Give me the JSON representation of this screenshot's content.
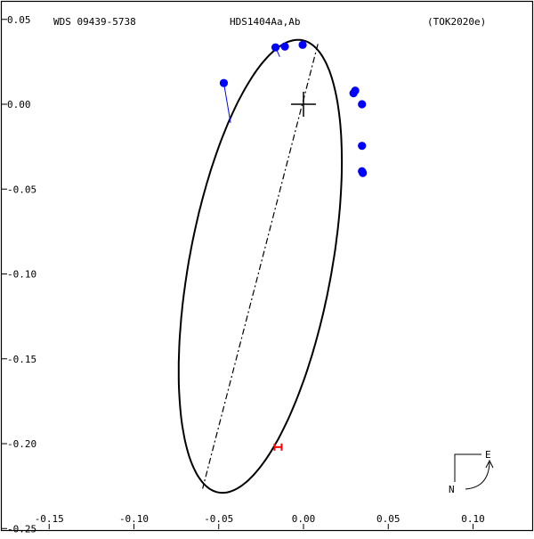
{
  "header": {
    "left": "WDS 09439-5738",
    "center": "HDS1404Aa,Ab",
    "right": "(TOK2020e)"
  },
  "compass": {
    "east": "E",
    "north": "N"
  },
  "chart_data": {
    "type": "scatter",
    "title": "HDS1404Aa,Ab",
    "xlim": [
      -0.15,
      0.13
    ],
    "ylim": [
      -0.25,
      0.05
    ],
    "x_ticks": [
      {
        "v": -0.15,
        "label": "-0.15"
      },
      {
        "v": -0.1,
        "label": "-0.10"
      },
      {
        "v": -0.05,
        "label": "-0.05"
      },
      {
        "v": 0.0,
        "label": "0.00"
      },
      {
        "v": 0.05,
        "label": "0.05"
      },
      {
        "v": 0.1,
        "label": "0.10"
      }
    ],
    "y_ticks": [
      {
        "v": 0.05,
        "label": "0.05"
      },
      {
        "v": 0.0,
        "label": "0.00"
      },
      {
        "v": -0.05,
        "label": "-0.05"
      },
      {
        "v": -0.1,
        "label": "-0.10"
      },
      {
        "v": -0.15,
        "label": "-0.15"
      },
      {
        "v": -0.2,
        "label": "-0.20"
      },
      {
        "v": -0.25,
        "label": "-0.25"
      }
    ],
    "primary": [
      0.0,
      0.0
    ],
    "orbit": {
      "center": [
        -0.0255,
        -0.0955
      ],
      "a": 0.1355,
      "b": 0.042,
      "angle_deg": 79.5,
      "color": "#000000"
    },
    "line_of_nodes": [
      [
        0.0085,
        0.0355
      ],
      [
        -0.0595,
        -0.2265
      ]
    ],
    "observations": {
      "color": "#0000ff",
      "points": [
        {
          "x": -0.047,
          "y": 0.0125,
          "ox": -0.043,
          "oy": -0.011
        },
        {
          "x": -0.0165,
          "y": 0.0335,
          "ox": -0.014,
          "oy": 0.028
        },
        {
          "x": -0.011,
          "y": 0.034,
          "ox": -0.011,
          "oy": 0.033
        },
        {
          "x": -0.0005,
          "y": 0.035,
          "ox": -0.0005,
          "oy": 0.035
        },
        {
          "x": 0.0295,
          "y": 0.0065,
          "ox": 0.0295,
          "oy": 0.0065
        },
        {
          "x": 0.0305,
          "y": 0.008,
          "ox": 0.0305,
          "oy": 0.008
        },
        {
          "x": 0.0345,
          "y": 0.0,
          "ox": 0.0345,
          "oy": 0.0
        },
        {
          "x": 0.0345,
          "y": -0.0245,
          "ox": 0.0345,
          "oy": -0.0245
        },
        {
          "x": 0.0345,
          "y": -0.0395,
          "ox": 0.0345,
          "oy": -0.0395
        },
        {
          "x": 0.035,
          "y": -0.0405,
          "ox": 0.035,
          "oy": -0.0405
        }
      ]
    },
    "periastron_marker": {
      "x": -0.015,
      "y": -0.202,
      "color": "#ff0000"
    }
  }
}
